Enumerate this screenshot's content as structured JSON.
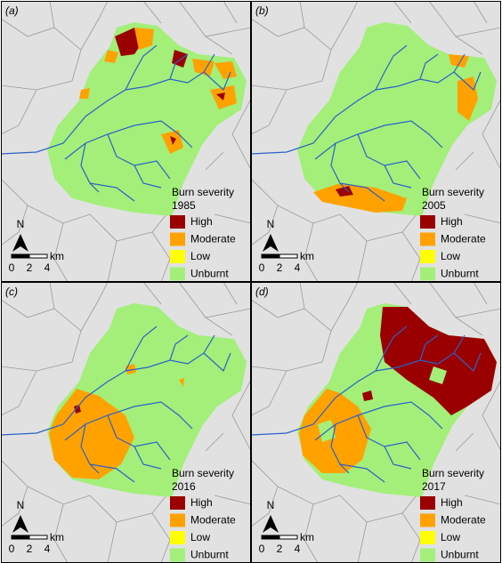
{
  "legend_title": "Burn severity",
  "legend": [
    {
      "label": "High",
      "color": "#9b0000"
    },
    {
      "label": "Moderate",
      "color": "#ffa200"
    },
    {
      "label": "Low",
      "color": "#ffff00"
    },
    {
      "label": "Unburnt",
      "color": "#a3ef7a"
    }
  ],
  "north": "N",
  "scale_labels": [
    "0",
    "2",
    "4"
  ],
  "scale_unit": "km",
  "panels": [
    {
      "label": "(a)",
      "year": "1985"
    },
    {
      "label": "(b)",
      "year": "2005"
    },
    {
      "label": "(c)",
      "year": "2016"
    },
    {
      "label": "(d)",
      "year": "2017"
    }
  ]
}
